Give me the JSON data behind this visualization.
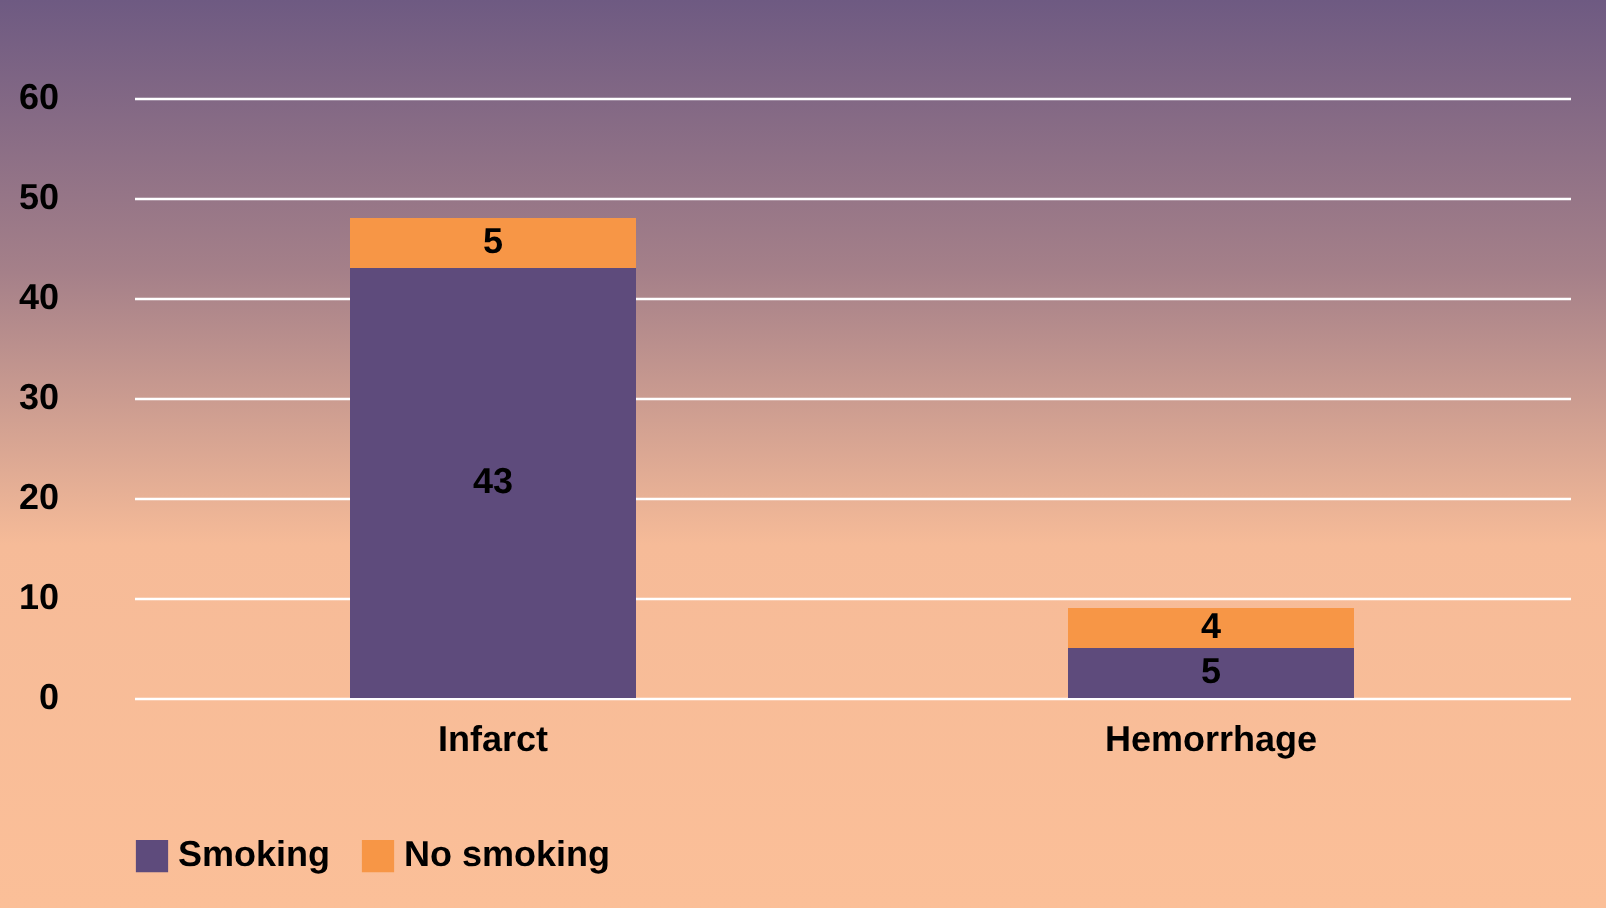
{
  "chart_data": {
    "type": "bar",
    "categories": [
      "Infarct",
      "Hemorrhage"
    ],
    "stacked": true,
    "series": [
      {
        "name": "Smoking",
        "color": "#5e4b7c",
        "values": [
          43,
          5
        ]
      },
      {
        "name": "No smoking",
        "color": "#f79646",
        "values": [
          5,
          4
        ]
      }
    ],
    "ylim": [
      0,
      60
    ],
    "yticks": [
      0,
      10,
      20,
      30,
      40,
      50,
      60
    ],
    "grid": true,
    "legend": "bottom",
    "data_labels": true
  }
}
